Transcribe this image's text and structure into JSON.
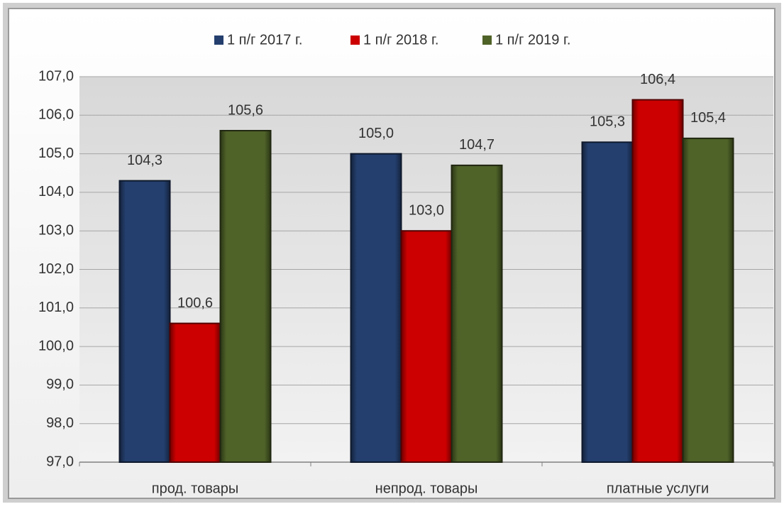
{
  "chart_data": {
    "type": "bar",
    "categories": [
      "прод. товары",
      "непрод. товары",
      "платные услуги"
    ],
    "series": [
      {
        "name": "1 п/г 2017 г.",
        "color": "#243f6e",
        "values": [
          104.3,
          105.0,
          105.3
        ],
        "value_labels": [
          "104,3",
          "105,0",
          "105,3"
        ]
      },
      {
        "name": "1 п/г 2018 г.",
        "color": "#cc0000",
        "values": [
          100.6,
          103.0,
          106.4
        ],
        "value_labels": [
          "100,6",
          "103,0",
          "106,4"
        ]
      },
      {
        "name": "1 п/г 2019 г.",
        "color": "#4f6228",
        "values": [
          105.6,
          104.7,
          105.4
        ],
        "value_labels": [
          "105,6",
          "104,7",
          "105,4"
        ]
      }
    ],
    "ylim": [
      97,
      107
    ],
    "yticks": [
      {
        "value": 97,
        "label": "97,0"
      },
      {
        "value": 98,
        "label": "98,0"
      },
      {
        "value": 99,
        "label": "99,0"
      },
      {
        "value": 100,
        "label": "100,0"
      },
      {
        "value": 101,
        "label": "101,0"
      },
      {
        "value": 102,
        "label": "102,0"
      },
      {
        "value": 103,
        "label": "103,0"
      },
      {
        "value": 104,
        "label": "104,0"
      },
      {
        "value": 105,
        "label": "105,0"
      },
      {
        "value": 106,
        "label": "106,0"
      },
      {
        "value": 107,
        "label": "107,0"
      }
    ],
    "grid": true,
    "legend": "top"
  }
}
